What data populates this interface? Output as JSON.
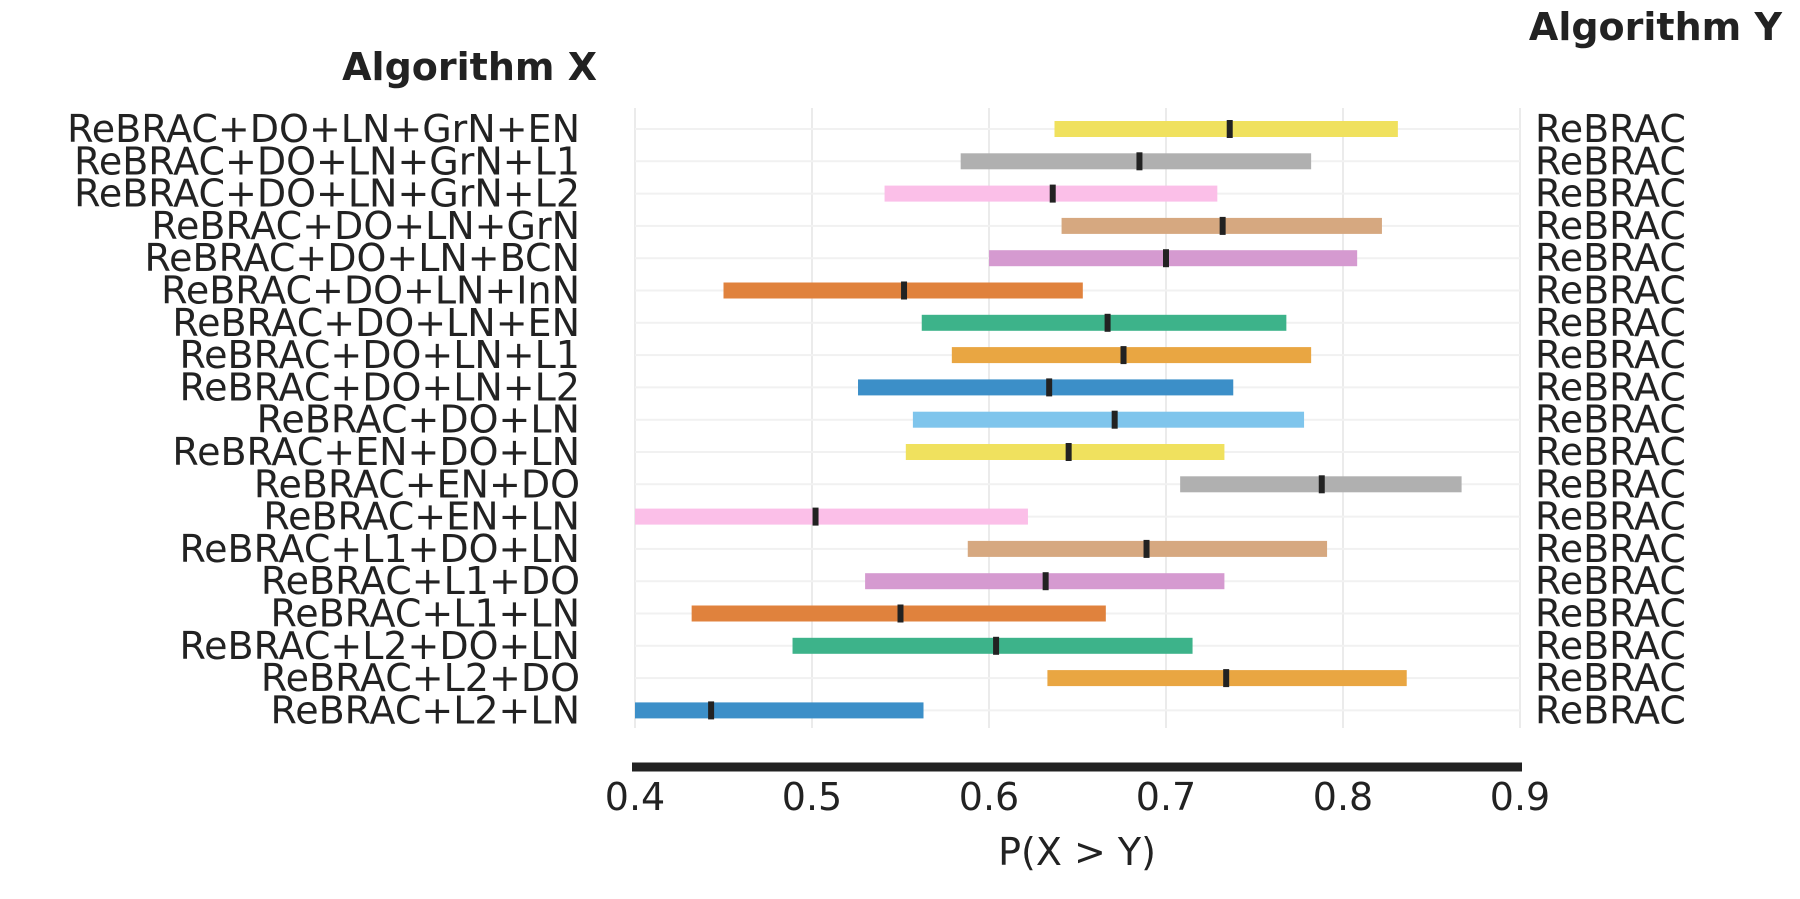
{
  "chart_data": {
    "type": "interval",
    "header_x": "Algorithm X",
    "header_y": "Algorithm Y",
    "xlabel": "P(X > Y)",
    "xlim": [
      0.4,
      0.9
    ],
    "xticks": [
      "0.4",
      "0.5",
      "0.6",
      "0.7",
      "0.8",
      "0.9"
    ],
    "xtick_values": [
      0.4,
      0.5,
      0.6,
      0.7,
      0.8,
      0.9
    ],
    "grid": true,
    "rows": [
      {
        "x": "ReBRAC+DO+LN+GrN+EN",
        "y": "ReBRAC",
        "low": 0.637,
        "point": 0.736,
        "high": 0.831,
        "color": "#f0e15e"
      },
      {
        "x": "ReBRAC+DO+LN+GrN+L1",
        "y": "ReBRAC",
        "low": 0.584,
        "point": 0.685,
        "high": 0.782,
        "color": "#b0b0b0"
      },
      {
        "x": "ReBRAC+DO+LN+GrN+L2",
        "y": "ReBRAC",
        "low": 0.541,
        "point": 0.636,
        "high": 0.729,
        "color": "#fbbfe8"
      },
      {
        "x": "ReBRAC+DO+LN+GrN",
        "y": "ReBRAC",
        "low": 0.641,
        "point": 0.732,
        "high": 0.822,
        "color": "#d6a880"
      },
      {
        "x": "ReBRAC+DO+LN+BCN",
        "y": "ReBRAC",
        "low": 0.6,
        "point": 0.7,
        "high": 0.808,
        "color": "#d59ad0"
      },
      {
        "x": "ReBRAC+DO+LN+InN",
        "y": "ReBRAC",
        "low": 0.45,
        "point": 0.552,
        "high": 0.653,
        "color": "#e0823d"
      },
      {
        "x": "ReBRAC+DO+LN+EN",
        "y": "ReBRAC",
        "low": 0.562,
        "point": 0.667,
        "high": 0.768,
        "color": "#3db38a"
      },
      {
        "x": "ReBRAC+DO+LN+L1",
        "y": "ReBRAC",
        "low": 0.579,
        "point": 0.676,
        "high": 0.782,
        "color": "#e9a642"
      },
      {
        "x": "ReBRAC+DO+LN+L2",
        "y": "ReBRAC",
        "low": 0.526,
        "point": 0.634,
        "high": 0.738,
        "color": "#3c8fc8"
      },
      {
        "x": "ReBRAC+DO+LN",
        "y": "ReBRAC",
        "low": 0.557,
        "point": 0.671,
        "high": 0.778,
        "color": "#7fc5ec"
      },
      {
        "x": "ReBRAC+EN+DO+LN",
        "y": "ReBRAC",
        "low": 0.553,
        "point": 0.645,
        "high": 0.733,
        "color": "#f0e15e"
      },
      {
        "x": "ReBRAC+EN+DO",
        "y": "ReBRAC",
        "low": 0.708,
        "point": 0.788,
        "high": 0.867,
        "color": "#b0b0b0"
      },
      {
        "x": "ReBRAC+EN+LN",
        "y": "ReBRAC",
        "low": 0.4,
        "point": 0.502,
        "high": 0.622,
        "color": "#fbbfe8"
      },
      {
        "x": "ReBRAC+L1+DO+LN",
        "y": "ReBRAC",
        "low": 0.588,
        "point": 0.689,
        "high": 0.791,
        "color": "#d6a880"
      },
      {
        "x": "ReBRAC+L1+DO",
        "y": "ReBRAC",
        "low": 0.53,
        "point": 0.632,
        "high": 0.733,
        "color": "#d59ad0"
      },
      {
        "x": "ReBRAC+L1+LN",
        "y": "ReBRAC",
        "low": 0.432,
        "point": 0.55,
        "high": 0.666,
        "color": "#e0823d"
      },
      {
        "x": "ReBRAC+L2+DO+LN",
        "y": "ReBRAC",
        "low": 0.489,
        "point": 0.604,
        "high": 0.715,
        "color": "#3db38a"
      },
      {
        "x": "ReBRAC+L2+DO",
        "y": "ReBRAC",
        "low": 0.633,
        "point": 0.734,
        "high": 0.836,
        "color": "#e9a642"
      },
      {
        "x": "ReBRAC+L2+LN",
        "y": "ReBRAC",
        "low": 0.4,
        "point": 0.443,
        "high": 0.563,
        "color": "#3c8fc8"
      }
    ]
  }
}
